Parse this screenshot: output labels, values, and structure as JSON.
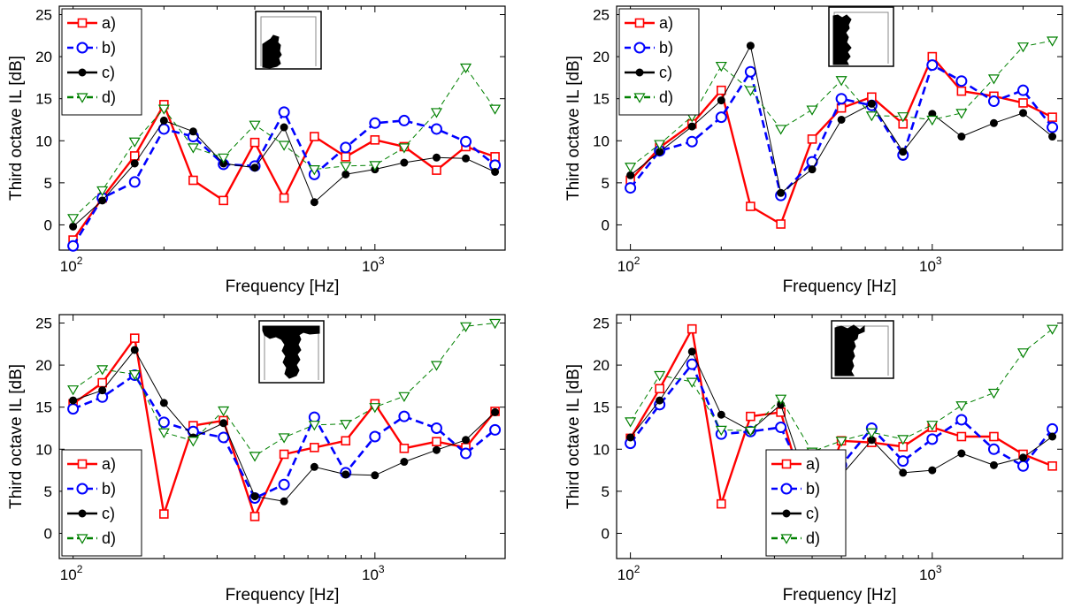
{
  "figure": {
    "title": ""
  },
  "chart_data": [
    {
      "type": "line",
      "xscale": "log",
      "xlim": [
        90,
        2700
      ],
      "ylim": [
        -3,
        26
      ],
      "xlabel": "Frequency [Hz]",
      "ylabel": "Third octave IL [dB]",
      "xticks": [
        {
          "base": "10",
          "exp": "2",
          "value": 100
        },
        {
          "base": "10",
          "exp": "3",
          "value": 1000
        }
      ],
      "yticks": [
        0,
        5,
        10,
        15,
        20,
        25
      ],
      "legend": "top-left",
      "grid": false,
      "x": [
        100,
        125,
        160,
        200,
        250,
        315,
        400,
        500,
        630,
        800,
        1000,
        1250,
        1600,
        2000,
        2500
      ],
      "series": [
        {
          "name": "a)",
          "color": "#ff0000",
          "marker": "square",
          "style": "solid",
          "values": [
            -1.8,
            3.2,
            8.2,
            14.3,
            5.3,
            2.9,
            9.8,
            3.2,
            10.5,
            8.1,
            10.1,
            9.3,
            6.5,
            9.3,
            8.1
          ]
        },
        {
          "name": "b)",
          "color": "#0000ff",
          "marker": "circle",
          "style": "dashed",
          "values": [
            -2.5,
            3.2,
            5.1,
            11.4,
            10.5,
            7.2,
            7.0,
            13.4,
            6.0,
            9.2,
            12.1,
            12.4,
            11.4,
            9.9,
            7.1
          ]
        },
        {
          "name": "c)",
          "color": "#000000",
          "marker": "dot",
          "style": "solid",
          "values": [
            -0.2,
            2.9,
            7.3,
            12.4,
            11.1,
            7.3,
            6.8,
            11.6,
            2.7,
            6.0,
            6.6,
            7.4,
            8.0,
            7.9,
            6.3
          ]
        },
        {
          "name": "d)",
          "color": "#008000",
          "marker": "triangle-down",
          "style": "dashed",
          "values": [
            0.8,
            4.1,
            9.9,
            13.8,
            9.2,
            8.0,
            11.9,
            9.5,
            6.6,
            7.0,
            7.1,
            9.2,
            13.4,
            18.7,
            13.8
          ]
        }
      ]
    },
    {
      "type": "line",
      "xscale": "log",
      "xlim": [
        90,
        2700
      ],
      "ylim": [
        -3,
        26
      ],
      "xlabel": "Frequency [Hz]",
      "ylabel": "Third octave IL [dB]",
      "xticks": [
        {
          "base": "10",
          "exp": "2",
          "value": 100
        },
        {
          "base": "10",
          "exp": "3",
          "value": 1000
        }
      ],
      "yticks": [
        0,
        5,
        10,
        15,
        20,
        25
      ],
      "legend": "top-left",
      "grid": false,
      "x": [
        100,
        125,
        160,
        200,
        250,
        315,
        400,
        500,
        630,
        800,
        1000,
        1250,
        1600,
        2000,
        2500
      ],
      "series": [
        {
          "name": "a)",
          "color": "#ff0000",
          "marker": "square",
          "style": "solid",
          "values": [
            5.3,
            9.2,
            12.0,
            16.0,
            2.2,
            0.1,
            10.2,
            13.9,
            15.2,
            12.0,
            20.0,
            15.9,
            15.3,
            14.5,
            12.8
          ]
        },
        {
          "name": "b)",
          "color": "#0000ff",
          "marker": "circle",
          "style": "dashed",
          "values": [
            4.4,
            8.8,
            9.9,
            12.8,
            18.2,
            3.5,
            7.5,
            15.0,
            14.2,
            8.3,
            19.0,
            17.1,
            14.7,
            16.0,
            11.6
          ]
        },
        {
          "name": "c)",
          "color": "#000000",
          "marker": "dot",
          "style": "solid",
          "values": [
            5.9,
            8.7,
            11.7,
            14.8,
            21.3,
            3.8,
            6.6,
            12.5,
            14.4,
            8.7,
            13.2,
            10.5,
            12.1,
            13.3,
            10.5
          ]
        },
        {
          "name": "d)",
          "color": "#008000",
          "marker": "triangle-down",
          "style": "dashed",
          "values": [
            6.9,
            9.6,
            12.9,
            18.9,
            16.0,
            11.4,
            13.7,
            17.2,
            13.0,
            12.9,
            12.5,
            13.3,
            17.4,
            21.2,
            21.9
          ]
        }
      ]
    },
    {
      "type": "line",
      "xscale": "log",
      "xlim": [
        90,
        2700
      ],
      "ylim": [
        -3,
        26
      ],
      "xlabel": "Frequency [Hz]",
      "ylabel": "Third octave IL [dB]",
      "xticks": [
        {
          "base": "10",
          "exp": "2",
          "value": 100
        },
        {
          "base": "10",
          "exp": "3",
          "value": 1000
        }
      ],
      "yticks": [
        0,
        5,
        10,
        15,
        20,
        25
      ],
      "legend": "bottom-left",
      "grid": false,
      "x": [
        100,
        125,
        160,
        200,
        250,
        315,
        400,
        500,
        630,
        800,
        1000,
        1250,
        1600,
        2000,
        2500
      ],
      "series": [
        {
          "name": "a)",
          "color": "#ff0000",
          "marker": "square",
          "style": "solid",
          "values": [
            15.4,
            17.9,
            23.2,
            2.3,
            12.8,
            13.4,
            2.0,
            9.4,
            10.2,
            11.0,
            15.4,
            10.1,
            10.9,
            10.2,
            14.5
          ]
        },
        {
          "name": "b)",
          "color": "#0000ff",
          "marker": "circle",
          "style": "dashed",
          "values": [
            14.8,
            16.2,
            18.8,
            13.2,
            12.1,
            11.4,
            4.2,
            5.8,
            13.8,
            7.2,
            11.5,
            13.9,
            12.5,
            9.5,
            12.3
          ]
        },
        {
          "name": "c)",
          "color": "#000000",
          "marker": "dot",
          "style": "solid",
          "values": [
            15.8,
            17.0,
            21.8,
            15.5,
            11.4,
            13.1,
            4.4,
            3.8,
            7.9,
            7.0,
            6.9,
            8.5,
            9.9,
            11.1,
            14.4
          ]
        },
        {
          "name": "d)",
          "color": "#008000",
          "marker": "triangle-down",
          "style": "dashed",
          "values": [
            17.1,
            19.5,
            18.9,
            12.0,
            11.0,
            14.6,
            9.2,
            11.4,
            12.9,
            13.0,
            15.0,
            16.3,
            20.0,
            24.6,
            25.0
          ]
        }
      ]
    },
    {
      "type": "line",
      "xscale": "log",
      "xlim": [
        90,
        2700
      ],
      "ylim": [
        -3,
        26
      ],
      "xlabel": "Frequency [Hz]",
      "ylabel": "Third octave IL [dB]",
      "xticks": [
        {
          "base": "10",
          "exp": "2",
          "value": 100
        },
        {
          "base": "10",
          "exp": "3",
          "value": 1000
        }
      ],
      "yticks": [
        0,
        5,
        10,
        15,
        20,
        25
      ],
      "legend": "bottom-right",
      "grid": false,
      "x": [
        100,
        125,
        160,
        200,
        250,
        315,
        400,
        500,
        630,
        800,
        1000,
        1250,
        1600,
        2000,
        2500
      ],
      "series": [
        {
          "name": "a)",
          "color": "#ff0000",
          "marker": "square",
          "style": "solid",
          "values": [
            11.3,
            17.2,
            24.3,
            3.5,
            13.9,
            14.4,
            1.6,
            11.0,
            10.8,
            10.3,
            12.6,
            11.5,
            11.5,
            9.4,
            8.0
          ]
        },
        {
          "name": "b)",
          "color": "#0000ff",
          "marker": "circle",
          "style": "dashed",
          "values": [
            10.7,
            15.3,
            20.1,
            11.8,
            12.1,
            12.6,
            4.7,
            8.1,
            12.5,
            8.6,
            11.2,
            13.5,
            10.0,
            8.0,
            12.4
          ]
        },
        {
          "name": "c)",
          "color": "#000000",
          "marker": "dot",
          "style": "solid",
          "values": [
            11.4,
            15.8,
            21.6,
            14.1,
            12.2,
            15.3,
            4.2,
            6.9,
            11.1,
            7.2,
            7.5,
            9.5,
            8.1,
            9.0,
            11.5
          ]
        },
        {
          "name": "d)",
          "color": "#008000",
          "marker": "triangle-down",
          "style": "dashed",
          "values": [
            13.3,
            18.8,
            18.0,
            12.3,
            12.2,
            16.0,
            9.7,
            11.0,
            12.0,
            11.2,
            12.9,
            15.2,
            16.7,
            21.5,
            24.3
          ]
        }
      ]
    }
  ]
}
